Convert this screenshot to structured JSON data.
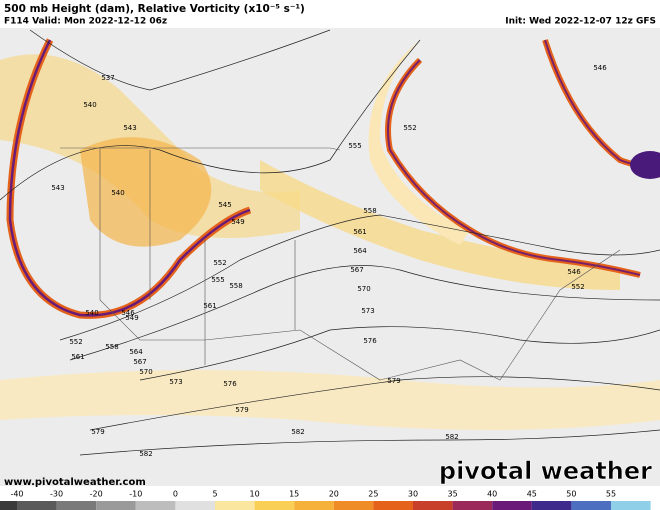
{
  "header": {
    "title": "500 mb Height (dam), Relative Vorticity (x10⁻⁵ s⁻¹)",
    "valid": "F114 Valid: Mon 2022-12-12 06z",
    "init": "Init: Wed 2022-12-07 12z GFS"
  },
  "contour_labels": [
    537,
    540,
    543,
    540,
    543,
    545,
    549,
    552,
    555,
    558,
    561,
    546,
    549,
    540,
    552,
    558,
    561,
    564,
    567,
    570,
    573,
    576,
    579,
    579,
    582,
    582,
    582,
    576,
    573,
    570,
    567,
    564,
    561,
    558,
    555,
    552,
    546,
    552,
    546,
    579
  ],
  "colorbar_ticks": [
    -40,
    -30,
    -20,
    -10,
    0,
    5,
    10,
    15,
    20,
    25,
    30,
    35,
    40,
    45,
    50,
    55
  ],
  "footer": {
    "website": "www.pivotalweather.com",
    "watermark": "pivotal weather"
  }
}
